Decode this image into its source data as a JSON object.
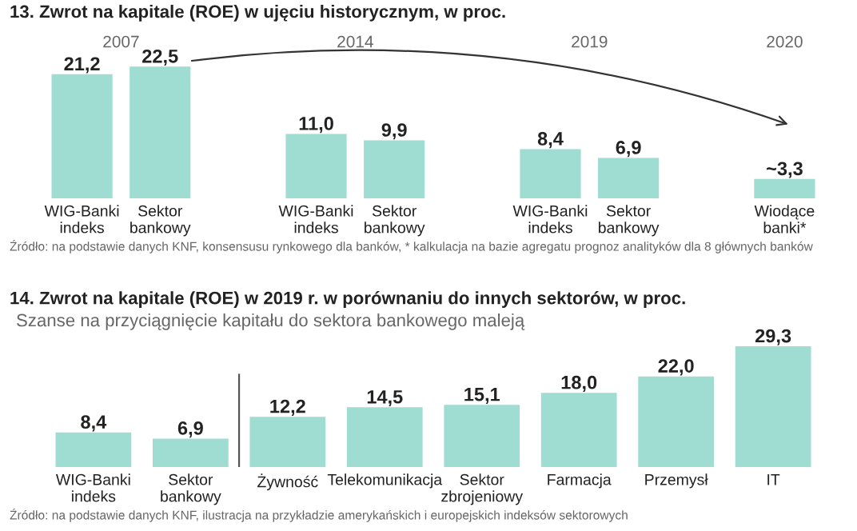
{
  "chart_data": [
    {
      "type": "bar",
      "title": "13. Zwrot na kapitale (ROE) w ujęciu historycznym, w proc.",
      "categories": [
        "WIG-Banki\nindeks",
        "Sektor\nbankowy",
        null,
        "WIG-Banki\nindeks",
        "Sektor\nbankowy",
        null,
        "WIG-Banki\nindeks",
        "Sektor\nbankowy",
        null,
        "Wiodące\nbanki*"
      ],
      "values": [
        21.2,
        22.5,
        null,
        11.0,
        9.9,
        null,
        8.4,
        6.9,
        null,
        3.3
      ],
      "value_labels": [
        "21,2",
        "22,5",
        null,
        "11,0",
        "9,9",
        null,
        "8,4",
        "6,9",
        null,
        "~3,3"
      ],
      "color": "#9fdcd2",
      "annotations": [
        "2007",
        "2014",
        "2019",
        "2020",
        "Źródło: na podstawie danych KNF, konsensusu rynkowego dla banków, * kalkulacja na bazie agregatu prognoz analityków dla 8 głównych banków"
      ]
    },
    {
      "type": "bar",
      "title": "14. Zwrot na kapitale (ROE) w 2019 r. w porównaniu do innych sektorów, w proc.",
      "subtitle": "Szanse na przyciągnięcie kapitału do sektora bankowego maleją",
      "categories": [
        "WIG-Banki\nindeks",
        "Sektor\nbankowy",
        "Żywność",
        "Telekomunikacja",
        "Sektor\nzbrojeniowy",
        "Farmacja",
        "Przemysł",
        "IT"
      ],
      "values": [
        8.4,
        6.9,
        12.2,
        14.5,
        15.1,
        18.0,
        22.0,
        29.3
      ],
      "value_labels": [
        "8,4",
        "6,9",
        "12,2",
        "14,5",
        "15,1",
        "18,0",
        "22,0",
        "29,3"
      ],
      "color": "#9fdcd2",
      "annotations": [
        "Źródło: na podstawie danych KNF, ilustracja na przykładzie amerykańskich i europejskich indeksów sektorowych"
      ]
    }
  ]
}
